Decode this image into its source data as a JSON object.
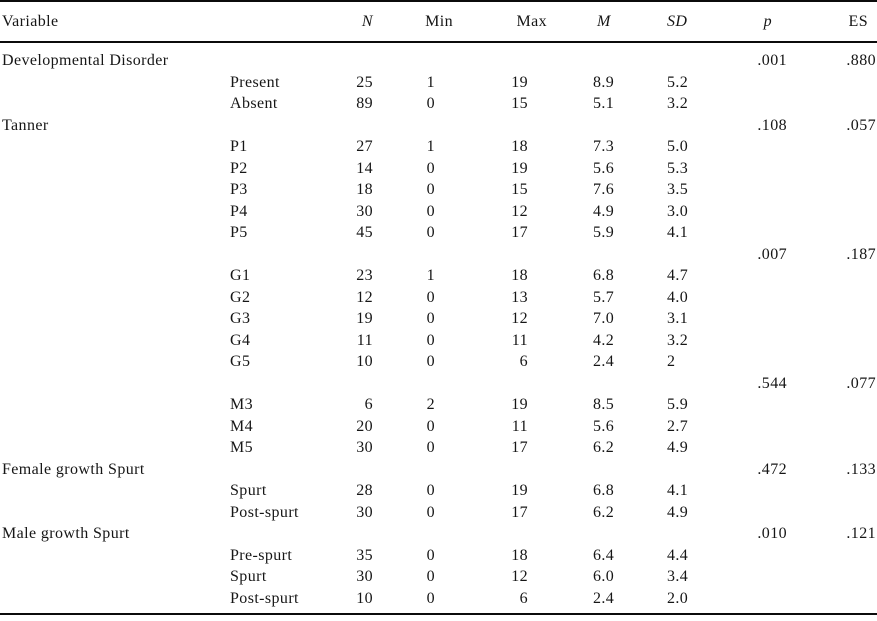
{
  "table": {
    "headers": [
      {
        "key": "variable",
        "label": "Variable",
        "italic": false
      },
      {
        "key": "level",
        "label": "",
        "italic": false
      },
      {
        "key": "n",
        "label": "N",
        "italic": true
      },
      {
        "key": "min",
        "label": "Min",
        "italic": false
      },
      {
        "key": "max",
        "label": "Max",
        "italic": false
      },
      {
        "key": "m",
        "label": "M",
        "italic": true
      },
      {
        "key": "sd",
        "label": "SD",
        "italic": true
      },
      {
        "key": "p",
        "label": "p",
        "italic": true
      },
      {
        "key": "es",
        "label": "ES",
        "italic": false
      }
    ],
    "rows": [
      [
        "Developmental Disorder",
        "",
        "",
        "",
        "",
        "",
        "",
        ".001",
        ".880"
      ],
      [
        "",
        "Present",
        "25",
        "1",
        "19",
        "8.9",
        "5.2",
        "",
        ""
      ],
      [
        "",
        "Absent",
        "89",
        "0",
        "15",
        "5.1",
        "3.2",
        "",
        ""
      ],
      [
        "Tanner",
        "",
        "",
        "",
        "",
        "",
        "",
        ".108",
        ".057"
      ],
      [
        "",
        "P1",
        "27",
        "1",
        "18",
        "7.3",
        "5.0",
        "",
        ""
      ],
      [
        "",
        "P2",
        "14",
        "0",
        "19",
        "5.6",
        "5.3",
        "",
        ""
      ],
      [
        "",
        "P3",
        "18",
        "0",
        "15",
        "7.6",
        "3.5",
        "",
        ""
      ],
      [
        "",
        "P4",
        "30",
        "0",
        "12",
        "4.9",
        "3.0",
        "",
        ""
      ],
      [
        "",
        "P5",
        "45",
        "0",
        "17",
        "5.9",
        "4.1",
        "",
        ""
      ],
      [
        "",
        "",
        "",
        "",
        "",
        "",
        "",
        ".007",
        ".187"
      ],
      [
        "",
        "G1",
        "23",
        "1",
        "18",
        "6.8",
        "4.7",
        "",
        ""
      ],
      [
        "",
        "G2",
        "12",
        "0",
        "13",
        "5.7",
        "4.0",
        "",
        ""
      ],
      [
        "",
        "G3",
        "19",
        "0",
        "12",
        "7.0",
        "3.1",
        "",
        ""
      ],
      [
        "",
        "G4",
        "11",
        "0",
        "11",
        "4.2",
        "3.2",
        "",
        ""
      ],
      [
        "",
        "G5",
        "10",
        "0",
        "6",
        "2.4",
        "2",
        "",
        ""
      ],
      [
        "",
        "",
        "",
        "",
        "",
        "",
        "",
        ".544",
        ".077"
      ],
      [
        "",
        "M3",
        "6",
        "2",
        "19",
        "8.5",
        "5.9",
        "",
        ""
      ],
      [
        "",
        "M4",
        "20",
        "0",
        "11",
        "5.6",
        "2.7",
        "",
        ""
      ],
      [
        "",
        "M5",
        "30",
        "0",
        "17",
        "6.2",
        "4.9",
        "",
        ""
      ],
      [
        "Female growth Spurt",
        "",
        "",
        "",
        "",
        "",
        "",
        ".472",
        ".133"
      ],
      [
        "",
        "Spurt",
        "28",
        "0",
        "19",
        "6.8",
        "4.1",
        "",
        ""
      ],
      [
        "",
        "Post-spurt",
        "30",
        "0",
        "17",
        "6.2",
        "4.9",
        "",
        ""
      ],
      [
        "Male growth Spurt",
        "",
        "",
        "",
        "",
        "",
        "",
        ".010",
        ".121"
      ],
      [
        "",
        "Pre-spurt",
        "35",
        "0",
        "18",
        "6.4",
        "4.4",
        "",
        ""
      ],
      [
        "",
        "Spurt",
        "30",
        "0",
        "12",
        "6.0",
        "3.4",
        "",
        ""
      ],
      [
        "",
        "Post-spurt",
        "10",
        "0",
        "6",
        "2.4",
        "2.0",
        "",
        ""
      ]
    ],
    "colors": {
      "rule": "#0b0b0b",
      "text": "#161616",
      "background": "#ffffff"
    }
  }
}
